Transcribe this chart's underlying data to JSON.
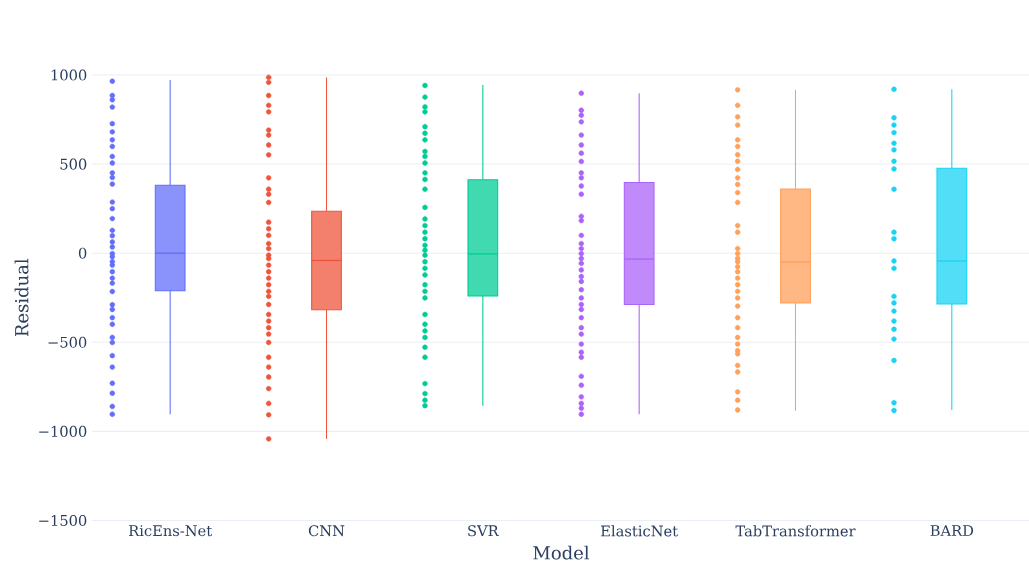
{
  "chart_data": {
    "type": "box",
    "xlabel": "Model",
    "ylabel": "Residual",
    "categories": [
      "RicEns-Net",
      "CNN",
      "SVR",
      "ElasticNet",
      "TabTransformer",
      "BARD"
    ],
    "colors": [
      "#636efa",
      "#ef553b",
      "#00cc96",
      "#ab63fa",
      "#ffa15a",
      "#19d3f3"
    ],
    "boxes": [
      {
        "low": -904,
        "q1": -211,
        "median": 0,
        "q3": 381,
        "high": 972
      },
      {
        "low": -1042,
        "q1": -318,
        "median": -41,
        "q3": 235,
        "high": 987
      },
      {
        "low": -856,
        "q1": -240,
        "median": -4,
        "q3": 412,
        "high": 944
      },
      {
        "low": -904,
        "q1": -288,
        "median": -33,
        "q3": 397,
        "high": 898
      },
      {
        "low": -885,
        "q1": -279,
        "median": -50,
        "q3": 360,
        "high": 917
      },
      {
        "low": -880,
        "q1": -285,
        "median": -44,
        "q3": 477,
        "high": 920
      }
    ],
    "series": [
      {
        "type": "scatter",
        "color": "#636efa",
        "x": [
          "RicEns-Net",
          "RicEns-Net",
          "RicEns-Net",
          "RicEns-Net",
          "RicEns-Net",
          "RicEns-Net",
          "RicEns-Net",
          "RicEns-Net",
          "RicEns-Net",
          "RicEns-Net",
          "RicEns-Net",
          "RicEns-Net",
          "RicEns-Net",
          "RicEns-Net",
          "RicEns-Net",
          "RicEns-Net",
          "RicEns-Net",
          "RicEns-Net",
          "RicEns-Net",
          "RicEns-Net",
          "RicEns-Net",
          "RicEns-Net",
          "RicEns-Net",
          "RicEns-Net",
          "RicEns-Net",
          "RicEns-Net",
          "RicEns-Net",
          "RicEns-Net",
          "RicEns-Net",
          "RicEns-Net",
          "RicEns-Net",
          "RicEns-Net",
          "RicEns-Net",
          "RicEns-Net",
          "RicEns-Net",
          "RicEns-Net",
          "RicEns-Net",
          "RicEns-Net",
          "RicEns-Net",
          "RicEns-Net"
        ],
        "values": [
          965,
          885,
          861,
          820,
          727,
          681,
          636,
          599,
          543,
          506,
          451,
          425,
          388,
          287,
          250,
          194,
          128,
          98,
          63,
          35,
          -2,
          -20,
          -48,
          -67,
          -104,
          -140,
          -168,
          -215,
          -289,
          -316,
          -362,
          -399,
          -473,
          -501,
          -575,
          -639,
          -730,
          -786,
          -860,
          -904
        ]
      },
      {
        "type": "scatter",
        "color": "#ef553b",
        "x": [
          "CNN",
          "CNN",
          "CNN",
          "CNN",
          "CNN",
          "CNN",
          "CNN",
          "CNN",
          "CNN",
          "CNN",
          "CNN",
          "CNN",
          "CNN",
          "CNN",
          "CNN",
          "CNN",
          "CNN",
          "CNN",
          "CNN",
          "CNN",
          "CNN",
          "CNN",
          "CNN",
          "CNN",
          "CNN",
          "CNN",
          "CNN",
          "CNN",
          "CNN",
          "CNN",
          "CNN",
          "CNN",
          "CNN",
          "CNN",
          "CNN",
          "CNN",
          "CNN",
          "CNN",
          "CNN"
        ],
        "values": [
          987,
          959,
          885,
          830,
          793,
          691,
          663,
          607,
          552,
          423,
          359,
          331,
          285,
          174,
          137,
          100,
          54,
          26,
          -11,
          -30,
          -67,
          -104,
          -140,
          -177,
          -214,
          -242,
          -288,
          -344,
          -381,
          -418,
          -454,
          -501,
          -584,
          -639,
          -695,
          -760,
          -843,
          -907,
          -1042
        ]
      },
      {
        "type": "scatter",
        "color": "#00cc96",
        "x": [
          "SVR",
          "SVR",
          "SVR",
          "SVR",
          "SVR",
          "SVR",
          "SVR",
          "SVR",
          "SVR",
          "SVR",
          "SVR",
          "SVR",
          "SVR",
          "SVR",
          "SVR",
          "SVR",
          "SVR",
          "SVR",
          "SVR",
          "SVR",
          "SVR",
          "SVR",
          "SVR",
          "SVR",
          "SVR",
          "SVR",
          "SVR",
          "SVR",
          "SVR",
          "SVR",
          "SVR",
          "SVR",
          "SVR",
          "SVR",
          "SVR",
          "SVR",
          "SVR"
        ],
        "values": [
          941,
          876,
          821,
          793,
          710,
          673,
          636,
          571,
          543,
          506,
          451,
          414,
          359,
          257,
          192,
          155,
          118,
          81,
          44,
          17,
          -11,
          -48,
          -85,
          -122,
          -177,
          -214,
          -251,
          -344,
          -399,
          -436,
          -473,
          -528,
          -584,
          -732,
          -788,
          -825,
          -856
        ]
      },
      {
        "type": "scatter",
        "color": "#ab63fa",
        "x": [
          "ElasticNet",
          "ElasticNet",
          "ElasticNet",
          "ElasticNet",
          "ElasticNet",
          "ElasticNet",
          "ElasticNet",
          "ElasticNet",
          "ElasticNet",
          "ElasticNet",
          "ElasticNet",
          "ElasticNet",
          "ElasticNet",
          "ElasticNet",
          "ElasticNet",
          "ElasticNet",
          "ElasticNet",
          "ElasticNet",
          "ElasticNet",
          "ElasticNet",
          "ElasticNet",
          "ElasticNet",
          "ElasticNet",
          "ElasticNet",
          "ElasticNet",
          "ElasticNet",
          "ElasticNet",
          "ElasticNet",
          "ElasticNet",
          "ElasticNet",
          "ElasticNet",
          "ElasticNet",
          "ElasticNet",
          "ElasticNet",
          "ElasticNet",
          "ElasticNet",
          "ElasticNet",
          "ElasticNet",
          "ElasticNet"
        ],
        "values": [
          898,
          802,
          774,
          737,
          663,
          607,
          561,
          515,
          451,
          423,
          377,
          331,
          207,
          183,
          100,
          54,
          26,
          -2,
          -30,
          -57,
          -94,
          -131,
          -159,
          -205,
          -251,
          -288,
          -316,
          -362,
          -418,
          -454,
          -510,
          -556,
          -584,
          -691,
          -741,
          -806,
          -843,
          -870,
          -904
        ]
      },
      {
        "type": "scatter",
        "color": "#ffa15a",
        "x": [
          "TabTransformer",
          "TabTransformer",
          "TabTransformer",
          "TabTransformer",
          "TabTransformer",
          "TabTransformer",
          "TabTransformer",
          "TabTransformer",
          "TabTransformer",
          "TabTransformer",
          "TabTransformer",
          "TabTransformer",
          "TabTransformer",
          "TabTransformer",
          "TabTransformer",
          "TabTransformer",
          "TabTransformer",
          "TabTransformer",
          "TabTransformer",
          "TabTransformer",
          "TabTransformer",
          "TabTransformer",
          "TabTransformer",
          "TabTransformer",
          "TabTransformer",
          "TabTransformer",
          "TabTransformer",
          "TabTransformer",
          "TabTransformer",
          "TabTransformer",
          "TabTransformer",
          "TabTransformer",
          "TabTransformer",
          "TabTransformer",
          "TabTransformer",
          "TabTransformer",
          "TabTransformer"
        ],
        "values": [
          917,
          830,
          765,
          719,
          636,
          599,
          553,
          516,
          470,
          423,
          386,
          340,
          285,
          155,
          118,
          26,
          -2,
          -30,
          -48,
          -76,
          -104,
          -140,
          -177,
          -214,
          -251,
          -297,
          -362,
          -418,
          -473,
          -510,
          -547,
          -565,
          -630,
          -667,
          -778,
          -825,
          -880
        ]
      },
      {
        "type": "scatter",
        "color": "#19d3f3",
        "x": [
          "BARD",
          "BARD",
          "BARD",
          "BARD",
          "BARD",
          "BARD",
          "BARD",
          "BARD",
          "BARD",
          "BARD",
          "BARD",
          "BARD",
          "BARD",
          "BARD",
          "BARD",
          "BARD",
          "BARD",
          "BARD",
          "BARD",
          "BARD",
          "BARD",
          "BARD"
        ],
        "values": [
          920,
          760,
          719,
          677,
          617,
          580,
          516,
          473,
          359,
          118,
          81,
          -44,
          -85,
          -242,
          -279,
          -325,
          -381,
          -427,
          -482,
          -602,
          -839,
          -883
        ]
      }
    ],
    "ylim": [
      -1500,
      1000
    ],
    "yticks": [
      {
        "value": -1500,
        "label": "−1500"
      },
      {
        "value": -1000,
        "label": "−1000"
      },
      {
        "value": -500,
        "label": "−500"
      },
      0,
      500,
      1000
    ],
    "grid": "y",
    "marker": "circle"
  }
}
